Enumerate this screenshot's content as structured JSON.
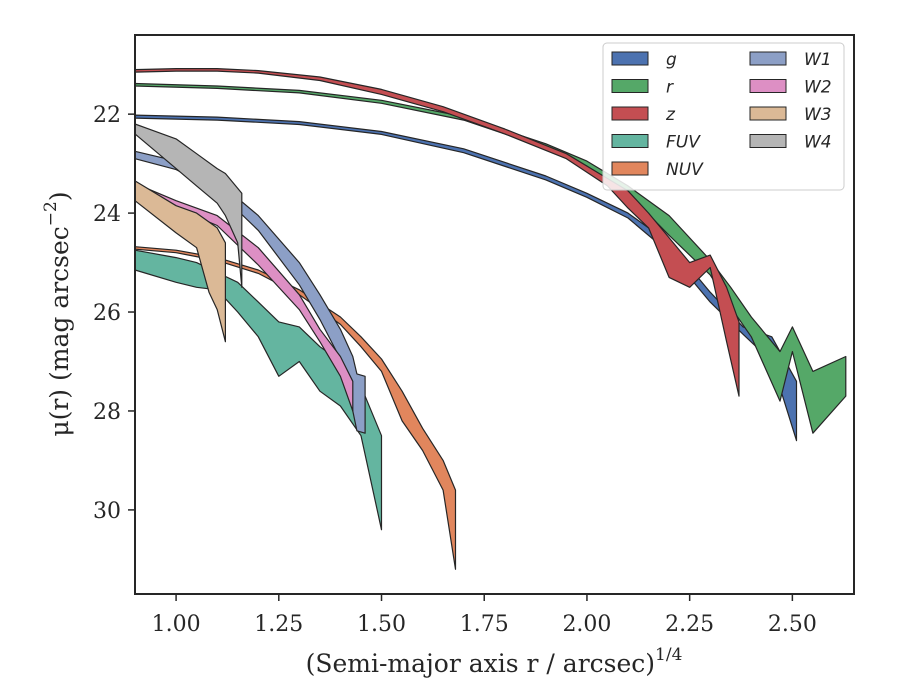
{
  "chart_data": {
    "type": "area",
    "xlabel": "(Semi-major axis r / arcsec)",
    "xlabel_superscript": "1/4",
    "ylabel": "μ(r) (mag arcsec",
    "ylabel_superscript": "−2",
    "ylabel_suffix": ")",
    "xlim": [
      0.9,
      2.65
    ],
    "ylim": [
      31.7,
      20.4
    ],
    "y_inverted": true,
    "x_ticks": [
      1.0,
      1.25,
      1.5,
      1.75,
      2.0,
      2.25,
      2.5
    ],
    "x_tick_labels": [
      "1.00",
      "1.25",
      "1.50",
      "1.75",
      "2.00",
      "2.25",
      "2.50"
    ],
    "y_ticks": [
      22,
      24,
      26,
      28,
      30
    ],
    "y_tick_labels": [
      "22",
      "24",
      "26",
      "28",
      "30"
    ],
    "grid": false,
    "legend_position": "top-right",
    "legend_columns": 2,
    "series": [
      {
        "name": "g",
        "color": "#4c72b0",
        "upper": [
          [
            0.9,
            22.02
          ],
          [
            1.1,
            22.06
          ],
          [
            1.3,
            22.15
          ],
          [
            1.5,
            22.35
          ],
          [
            1.7,
            22.7
          ],
          [
            1.9,
            23.25
          ],
          [
            2.0,
            23.6
          ],
          [
            2.1,
            24.0
          ],
          [
            2.2,
            24.6
          ],
          [
            2.3,
            25.6
          ],
          [
            2.38,
            26.3
          ],
          [
            2.45,
            26.5
          ],
          [
            2.51,
            27.4
          ]
        ],
        "lower": [
          [
            0.9,
            22.08
          ],
          [
            1.1,
            22.12
          ],
          [
            1.3,
            22.21
          ],
          [
            1.5,
            22.41
          ],
          [
            1.7,
            22.78
          ],
          [
            1.9,
            23.33
          ],
          [
            2.0,
            23.68
          ],
          [
            2.1,
            24.1
          ],
          [
            2.2,
            24.8
          ],
          [
            2.3,
            25.8
          ],
          [
            2.38,
            26.45
          ],
          [
            2.45,
            27.0
          ],
          [
            2.51,
            28.6
          ]
        ]
      },
      {
        "name": "r",
        "color": "#55a868",
        "upper": [
          [
            0.9,
            21.38
          ],
          [
            1.1,
            21.43
          ],
          [
            1.3,
            21.52
          ],
          [
            1.5,
            21.72
          ],
          [
            1.7,
            22.05
          ],
          [
            1.9,
            22.6
          ],
          [
            2.0,
            22.95
          ],
          [
            2.1,
            23.45
          ],
          [
            2.2,
            24.05
          ],
          [
            2.3,
            24.95
          ],
          [
            2.35,
            25.5
          ],
          [
            2.4,
            26.1
          ],
          [
            2.47,
            26.8
          ],
          [
            2.5,
            26.3
          ],
          [
            2.55,
            27.2
          ],
          [
            2.63,
            26.9
          ]
        ],
        "lower": [
          [
            0.9,
            21.43
          ],
          [
            1.1,
            21.48
          ],
          [
            1.3,
            21.57
          ],
          [
            1.5,
            21.78
          ],
          [
            1.7,
            22.12
          ],
          [
            1.9,
            22.68
          ],
          [
            2.0,
            23.05
          ],
          [
            2.1,
            23.6
          ],
          [
            2.2,
            24.45
          ],
          [
            2.3,
            25.25
          ],
          [
            2.35,
            25.9
          ],
          [
            2.4,
            26.5
          ],
          [
            2.47,
            27.8
          ],
          [
            2.5,
            26.8
          ],
          [
            2.55,
            28.45
          ],
          [
            2.63,
            27.7
          ]
        ]
      },
      {
        "name": "z",
        "color": "#c44e52",
        "upper": [
          [
            0.9,
            21.1
          ],
          [
            1.0,
            21.08
          ],
          [
            1.1,
            21.08
          ],
          [
            1.2,
            21.12
          ],
          [
            1.35,
            21.25
          ],
          [
            1.5,
            21.5
          ],
          [
            1.65,
            21.85
          ],
          [
            1.8,
            22.3
          ],
          [
            1.95,
            22.8
          ],
          [
            2.05,
            23.3
          ],
          [
            2.1,
            23.55
          ],
          [
            2.15,
            24.0
          ],
          [
            2.2,
            24.5
          ],
          [
            2.25,
            25.0
          ],
          [
            2.3,
            24.85
          ],
          [
            2.34,
            25.5
          ],
          [
            2.37,
            26.2
          ]
        ],
        "lower": [
          [
            0.9,
            21.15
          ],
          [
            1.0,
            21.13
          ],
          [
            1.1,
            21.13
          ],
          [
            1.2,
            21.17
          ],
          [
            1.35,
            21.32
          ],
          [
            1.5,
            21.6
          ],
          [
            1.65,
            21.95
          ],
          [
            1.8,
            22.4
          ],
          [
            1.95,
            22.9
          ],
          [
            2.05,
            23.45
          ],
          [
            2.1,
            23.9
          ],
          [
            2.15,
            24.3
          ],
          [
            2.2,
            25.3
          ],
          [
            2.25,
            25.5
          ],
          [
            2.3,
            25.1
          ],
          [
            2.34,
            26.6
          ],
          [
            2.37,
            27.7
          ]
        ]
      },
      {
        "name": "FUV",
        "color": "#64b5a0",
        "upper": [
          [
            0.9,
            24.75
          ],
          [
            1.0,
            24.9
          ],
          [
            1.05,
            25.0
          ],
          [
            1.1,
            25.2
          ],
          [
            1.15,
            25.4
          ],
          [
            1.2,
            25.8
          ],
          [
            1.25,
            26.2
          ],
          [
            1.3,
            26.3
          ],
          [
            1.35,
            26.7
          ],
          [
            1.4,
            27.0
          ],
          [
            1.45,
            27.5
          ],
          [
            1.5,
            28.5
          ]
        ],
        "lower": [
          [
            0.9,
            25.15
          ],
          [
            1.0,
            25.4
          ],
          [
            1.05,
            25.5
          ],
          [
            1.1,
            25.55
          ],
          [
            1.15,
            26.0
          ],
          [
            1.2,
            26.5
          ],
          [
            1.25,
            27.3
          ],
          [
            1.3,
            27.0
          ],
          [
            1.35,
            27.6
          ],
          [
            1.4,
            27.9
          ],
          [
            1.45,
            28.5
          ],
          [
            1.5,
            30.4
          ]
        ]
      },
      {
        "name": "NUV",
        "color": "#e1865d",
        "upper": [
          [
            0.9,
            24.68
          ],
          [
            1.0,
            24.75
          ],
          [
            1.1,
            24.9
          ],
          [
            1.2,
            25.15
          ],
          [
            1.3,
            25.55
          ],
          [
            1.4,
            26.1
          ],
          [
            1.45,
            26.5
          ],
          [
            1.5,
            26.95
          ],
          [
            1.55,
            27.6
          ],
          [
            1.6,
            28.35
          ],
          [
            1.65,
            29.0
          ],
          [
            1.68,
            29.6
          ]
        ],
        "lower": [
          [
            0.9,
            24.73
          ],
          [
            1.0,
            24.8
          ],
          [
            1.1,
            24.96
          ],
          [
            1.2,
            25.22
          ],
          [
            1.3,
            25.65
          ],
          [
            1.4,
            26.25
          ],
          [
            1.45,
            26.7
          ],
          [
            1.5,
            27.2
          ],
          [
            1.55,
            28.2
          ],
          [
            1.6,
            28.8
          ],
          [
            1.65,
            29.6
          ],
          [
            1.68,
            31.2
          ]
        ]
      },
      {
        "name": "W1",
        "color": "#8c9fc6",
        "upper": [
          [
            0.9,
            22.75
          ],
          [
            1.0,
            22.95
          ],
          [
            1.1,
            23.35
          ],
          [
            1.2,
            24.05
          ],
          [
            1.3,
            25.0
          ],
          [
            1.35,
            25.65
          ],
          [
            1.4,
            26.35
          ],
          [
            1.43,
            26.9
          ],
          [
            1.44,
            27.25
          ],
          [
            1.46,
            27.3
          ]
        ],
        "lower": [
          [
            0.9,
            22.9
          ],
          [
            1.0,
            23.12
          ],
          [
            1.1,
            23.55
          ],
          [
            1.2,
            24.35
          ],
          [
            1.3,
            25.45
          ],
          [
            1.35,
            26.15
          ],
          [
            1.4,
            26.95
          ],
          [
            1.43,
            28.0
          ],
          [
            1.44,
            28.4
          ],
          [
            1.46,
            28.45
          ]
        ]
      },
      {
        "name": "W2",
        "color": "#dd8fc4",
        "upper": [
          [
            0.9,
            23.4
          ],
          [
            1.0,
            23.75
          ],
          [
            1.1,
            24.05
          ],
          [
            1.2,
            24.7
          ],
          [
            1.3,
            25.65
          ],
          [
            1.35,
            26.35
          ],
          [
            1.4,
            26.9
          ],
          [
            1.43,
            27.4
          ]
        ],
        "lower": [
          [
            0.9,
            23.55
          ],
          [
            1.0,
            23.9
          ],
          [
            1.1,
            24.25
          ],
          [
            1.2,
            25.05
          ],
          [
            1.3,
            25.95
          ],
          [
            1.35,
            26.6
          ],
          [
            1.4,
            27.3
          ],
          [
            1.43,
            28.0
          ]
        ]
      },
      {
        "name": "W3",
        "color": "#dbb996",
        "upper": [
          [
            0.9,
            23.35
          ],
          [
            1.0,
            23.85
          ],
          [
            1.05,
            24.0
          ],
          [
            1.1,
            24.3
          ],
          [
            1.12,
            24.6
          ]
        ],
        "lower": [
          [
            0.9,
            23.75
          ],
          [
            1.0,
            24.4
          ],
          [
            1.05,
            24.7
          ],
          [
            1.08,
            25.6
          ],
          [
            1.1,
            25.95
          ],
          [
            1.12,
            26.6
          ]
        ]
      },
      {
        "name": "W4",
        "color": "#b5b5b5",
        "upper": [
          [
            0.9,
            22.2
          ],
          [
            1.0,
            22.5
          ],
          [
            1.05,
            22.8
          ],
          [
            1.1,
            23.1
          ],
          [
            1.12,
            23.2
          ],
          [
            1.16,
            23.6
          ]
        ],
        "lower": [
          [
            0.9,
            22.4
          ],
          [
            1.0,
            23.1
          ],
          [
            1.05,
            23.45
          ],
          [
            1.1,
            23.8
          ],
          [
            1.12,
            24.05
          ],
          [
            1.15,
            24.6
          ],
          [
            1.16,
            25.5
          ]
        ]
      }
    ]
  }
}
